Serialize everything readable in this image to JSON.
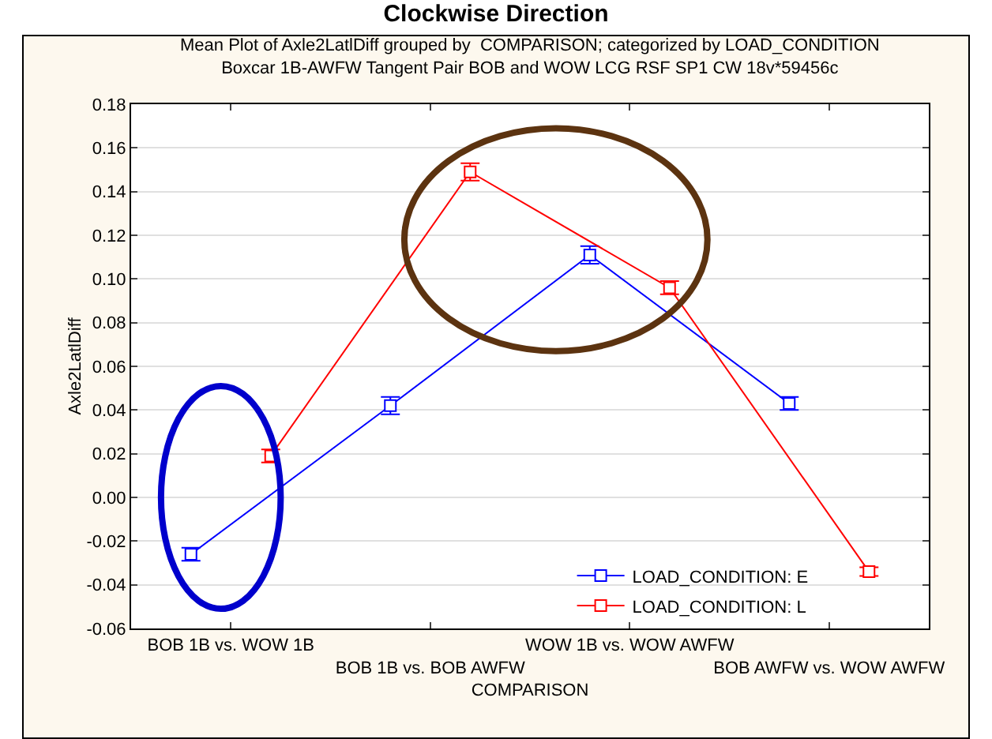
{
  "chart_data": {
    "type": "line",
    "title": "Clockwise Direction",
    "subtitle": "Mean Plot of Axle2LatlDiff grouped by  COMPARISON; categorized by LOAD_CONDITION\nBoxcar 1B-AWFW Tangent Pair BOB and WOW LCG RSF SP1 CW 18v*59456c",
    "xlabel": "COMPARISON",
    "ylabel": "Axle2LatlDiff",
    "categories": [
      "BOB 1B vs. WOW 1B",
      "BOB 1B vs. BOB AWFW",
      "WOW 1B vs. WOW AWFW",
      "BOB AWFW vs. WOW AWFW"
    ],
    "series": [
      {
        "name": "LOAD_CONDITION: E",
        "color": "#0000ff",
        "values": [
          -0.026,
          0.042,
          0.111,
          0.043
        ],
        "errors": [
          0.003,
          0.004,
          0.004,
          0.003
        ]
      },
      {
        "name": "LOAD_CONDITION: L",
        "color": "#ff0000",
        "values": [
          0.019,
          0.149,
          0.096,
          -0.034
        ],
        "errors": [
          0.003,
          0.004,
          0.003,
          0.002
        ]
      }
    ],
    "ylim": [
      -0.06,
      0.18
    ],
    "yticks": [
      {
        "value": -0.06,
        "label": "-0.06"
      },
      {
        "value": -0.04,
        "label": "-0.04"
      },
      {
        "value": -0.02,
        "label": "-0.02"
      },
      {
        "value": 0,
        "label": "0.00"
      },
      {
        "value": 0.02,
        "label": "0.02"
      },
      {
        "value": 0.04,
        "label": "0.04"
      },
      {
        "value": 0.06,
        "label": "0.06"
      },
      {
        "value": 0.08,
        "label": "0.08"
      },
      {
        "value": 0.1,
        "label": "0.10"
      },
      {
        "value": 0.12,
        "label": "0.12"
      },
      {
        "value": 0.14,
        "label": "0.14"
      },
      {
        "value": 0.16,
        "label": "0.16"
      },
      {
        "value": 0.18,
        "label": "0.18"
      }
    ],
    "grid": "y",
    "legend": "bottom right",
    "marker": "square",
    "line_style": "solid"
  }
}
